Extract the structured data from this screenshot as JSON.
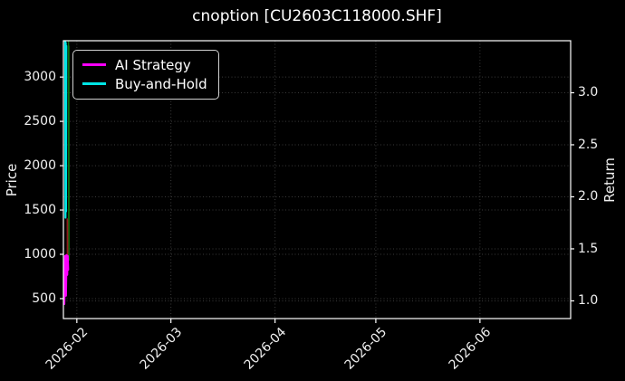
{
  "chart_data": {
    "type": "line",
    "title": "cnoption [CU2603C118000.SHF]",
    "background": "#000000",
    "text_color": "#f2f2f2",
    "grid": {
      "visible": true,
      "color": "#3a3a3a",
      "style": "dotted"
    },
    "x_axis": {
      "tick_labels": [
        "2026-02",
        "2026-03",
        "2026-04",
        "2026-05",
        "2026-06"
      ],
      "tick_days": [
        4,
        32,
        63,
        93,
        124
      ],
      "domain_days": [
        0,
        151
      ],
      "start_date_estimate": "2026-01-28"
    },
    "left_axis": {
      "label": "Price",
      "ticks": [
        500,
        1000,
        1500,
        2000,
        2500,
        3000
      ],
      "range": [
        275,
        3410
      ]
    },
    "right_axis": {
      "label": "Return",
      "ticks": [
        "1.0",
        "1.5",
        "2.0",
        "2.5",
        "3.0"
      ],
      "tick_values": [
        1.0,
        1.5,
        2.0,
        2.5,
        3.0
      ],
      "range": [
        0.83,
        3.5
      ]
    },
    "legend": {
      "position": "upper-left",
      "entries": [
        {
          "label": "AI Strategy",
          "color": "#ff00ff"
        },
        {
          "label": "Buy-and-Hold",
          "color": "#00e5e5"
        }
      ]
    },
    "series": [
      {
        "name": "Buy-and-Hold",
        "axis": "right",
        "color": "#00e5e5",
        "width": 2.2,
        "in_legend": true,
        "points": [
          [
            0.55,
            3.5
          ],
          [
            0.62,
            1.8
          ],
          [
            0.7,
            3.48
          ],
          [
            0.78,
            1.86
          ],
          [
            0.85,
            3.45
          ]
        ]
      },
      {
        "name": "Price (up days)",
        "axis": "left",
        "color": "#0e6f0e",
        "width": 1.4,
        "in_legend": false,
        "points": [
          [
            1.5,
            3400
          ],
          [
            1.56,
            950
          ],
          [
            1.62,
            3350
          ],
          [
            1.68,
            935
          ]
        ]
      },
      {
        "name": "Price (down days)",
        "axis": "left",
        "color": "#8f1a1a",
        "width": 1.4,
        "in_legend": false,
        "points": [
          [
            1.12,
            1400
          ],
          [
            1.18,
            930
          ],
          [
            1.24,
            1390
          ],
          [
            1.3,
            925
          ]
        ]
      },
      {
        "name": "AI Strategy",
        "axis": "right",
        "color": "#ff00ff",
        "width": 2.4,
        "in_legend": true,
        "points": [
          [
            0.25,
            0.97
          ],
          [
            0.5,
            1.43
          ],
          [
            0.72,
            1.05
          ],
          [
            0.92,
            1.44
          ],
          [
            1.1,
            1.25
          ],
          [
            1.28,
            1.43
          ],
          [
            1.4,
            1.3
          ]
        ]
      }
    ]
  }
}
